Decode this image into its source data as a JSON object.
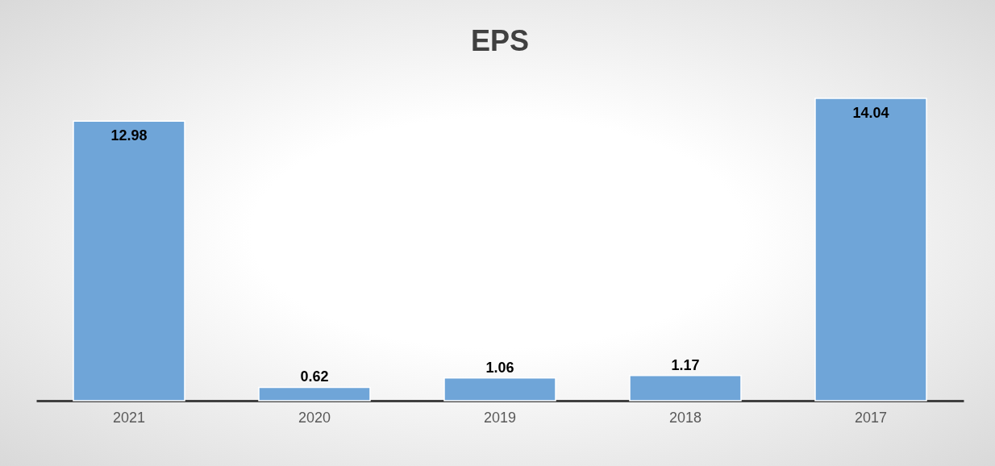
{
  "chart_data": {
    "type": "bar",
    "title": "EPS",
    "categories": [
      "2021",
      "2020",
      "2019",
      "2018",
      "2017"
    ],
    "values": [
      12.98,
      0.62,
      1.06,
      1.17,
      14.04
    ],
    "color": "#6fa5d8",
    "data_labels": true
  }
}
